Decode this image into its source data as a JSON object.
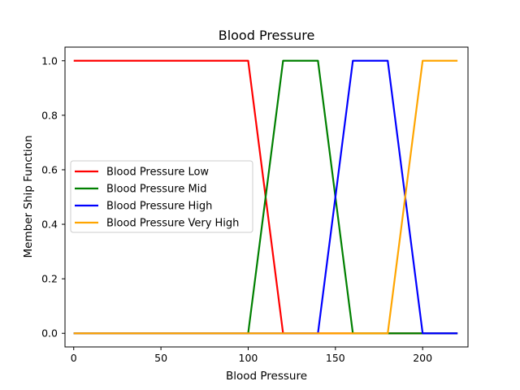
{
  "chart_data": {
    "type": "line",
    "title": "Blood Pressure",
    "xlabel": "Blood Pressure",
    "ylabel": "Member Ship Function",
    "xlim": [
      -5,
      226
    ],
    "ylim": [
      -0.05,
      1.05
    ],
    "xticks": [
      0,
      50,
      100,
      150,
      200
    ],
    "xtick_labels": [
      "0",
      "50",
      "100",
      "150",
      "200"
    ],
    "yticks": [
      0,
      0.2,
      0.4,
      0.6,
      0.8,
      1.0
    ],
    "ytick_labels": [
      "0.0",
      "0.2",
      "0.4",
      "0.6",
      "0.8",
      "1.0"
    ],
    "grid": false,
    "legend_position": "center-left",
    "series": [
      {
        "name": "Blood Pressure Low",
        "color": "#ff0000",
        "x": [
          0,
          100,
          120,
          220
        ],
        "y": [
          1,
          1,
          0,
          0
        ]
      },
      {
        "name": "Blood Pressure Mid",
        "color": "#008000",
        "x": [
          0,
          100,
          120,
          140,
          160,
          220
        ],
        "y": [
          0,
          0,
          1,
          1,
          0,
          0
        ]
      },
      {
        "name": "Blood Pressure High",
        "color": "#0000ff",
        "x": [
          0,
          140,
          160,
          180,
          200,
          220
        ],
        "y": [
          0,
          0,
          1,
          1,
          0,
          0
        ]
      },
      {
        "name": "Blood Pressure Very High",
        "color": "#ffa500",
        "x": [
          0,
          180,
          200,
          220
        ],
        "y": [
          0,
          0,
          1,
          1
        ]
      }
    ]
  }
}
